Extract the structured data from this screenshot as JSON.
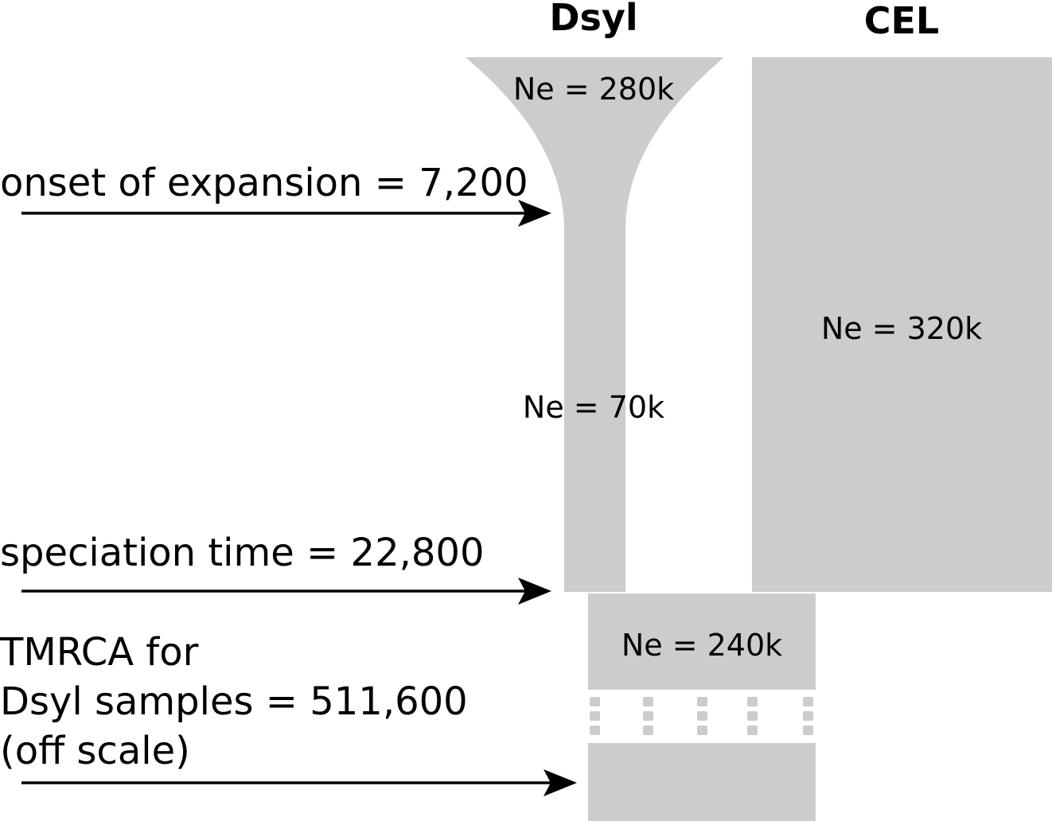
{
  "populations": {
    "dsyl": {
      "title": "Dsyl",
      "ne_expanded": "Ne = 280k",
      "ne_ancestral": "Ne = 70k"
    },
    "cel": {
      "title": "CEL",
      "ne": "Ne = 320k"
    },
    "ancestral": {
      "ne": "Ne = 240k"
    }
  },
  "events": {
    "expansion": "onset of expansion = 7,200",
    "speciation": "speciation time = 22,800",
    "tmrca": {
      "line1": "TMRCA for",
      "line2": "Dsyl samples = 511,600",
      "line3": "(off scale)"
    }
  },
  "colors": {
    "population_fill": "#cccccc",
    "arrow": "#000000"
  }
}
